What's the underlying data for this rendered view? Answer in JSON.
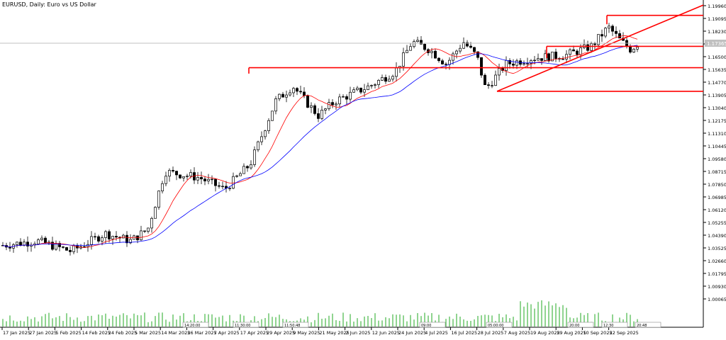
{
  "chart_data": {
    "type": "candlestick",
    "title": "EURUSD, Daily:  Euro vs US Dollar",
    "current_price_label": "1.17365",
    "y_ticks": [
      "1.19960",
      "1.19095",
      "1.18230",
      "1.17365",
      "1.16500",
      "1.15635",
      "1.14770",
      "1.13905",
      "1.13040",
      "1.12175",
      "1.11310",
      "1.10445",
      "1.09580",
      "1.08715",
      "1.07850",
      "1.06985",
      "1.06120",
      "1.05255",
      "1.04390",
      "1.03525",
      "1.02660",
      "1.01795",
      "1.00930",
      "1.00065"
    ],
    "ylim": [
      1.0,
      1.2
    ],
    "x_ticks": [
      "17 Jan 2025",
      "27 Jan 2025",
      "5 Feb 2025",
      "14 Feb 2025",
      "24 Feb 2025",
      "5 Mar 2025",
      "14 Mar 2025",
      "26 Mar 2025",
      "7 Apr 2025",
      "17 Apr 2025",
      "29 Apr 2025",
      "9 May 2025",
      "21 May 2025",
      "2 Jun 2025",
      "12 Jun 2025",
      "24 Jun 2025",
      "4 Jul 2025",
      "16 Jul 2025",
      "28 Jul 2025",
      "7 Aug 2025",
      "19 Aug 2025",
      "29 Aug 2025",
      "10 Sep 2025",
      "22 Sep 2025"
    ],
    "legend": "none",
    "grid": false,
    "series": [
      {
        "kind": "ohlc",
        "up_color": "#ffffff",
        "down_color": "#000000"
      },
      {
        "kind": "ma-fast",
        "color": "#ff0000"
      },
      {
        "kind": "ma-slow",
        "color": "#0000ff"
      }
    ],
    "annotations": [
      {
        "kind": "resistance",
        "from": 1.1575,
        "to": 1.1575,
        "color": "#ff0000"
      },
      {
        "kind": "support",
        "from": 1.1415,
        "to": 1.1415,
        "color": "#ff0000"
      },
      {
        "kind": "top",
        "from": 1.193,
        "to": 1.193,
        "color": "#ff0000"
      },
      {
        "kind": "range-high",
        "from": 1.172,
        "to": 1.172,
        "color": "#ff0000"
      },
      {
        "kind": "trendline",
        "from": 1.1415,
        "to": 1.2,
        "color": "#ff0000"
      }
    ],
    "volume_labels": [
      "14:20:00",
      "11:30:00",
      "11:50:48",
      "09:00",
      "05:00:00",
      "20:00",
      "12:30",
      "20:48"
    ]
  }
}
